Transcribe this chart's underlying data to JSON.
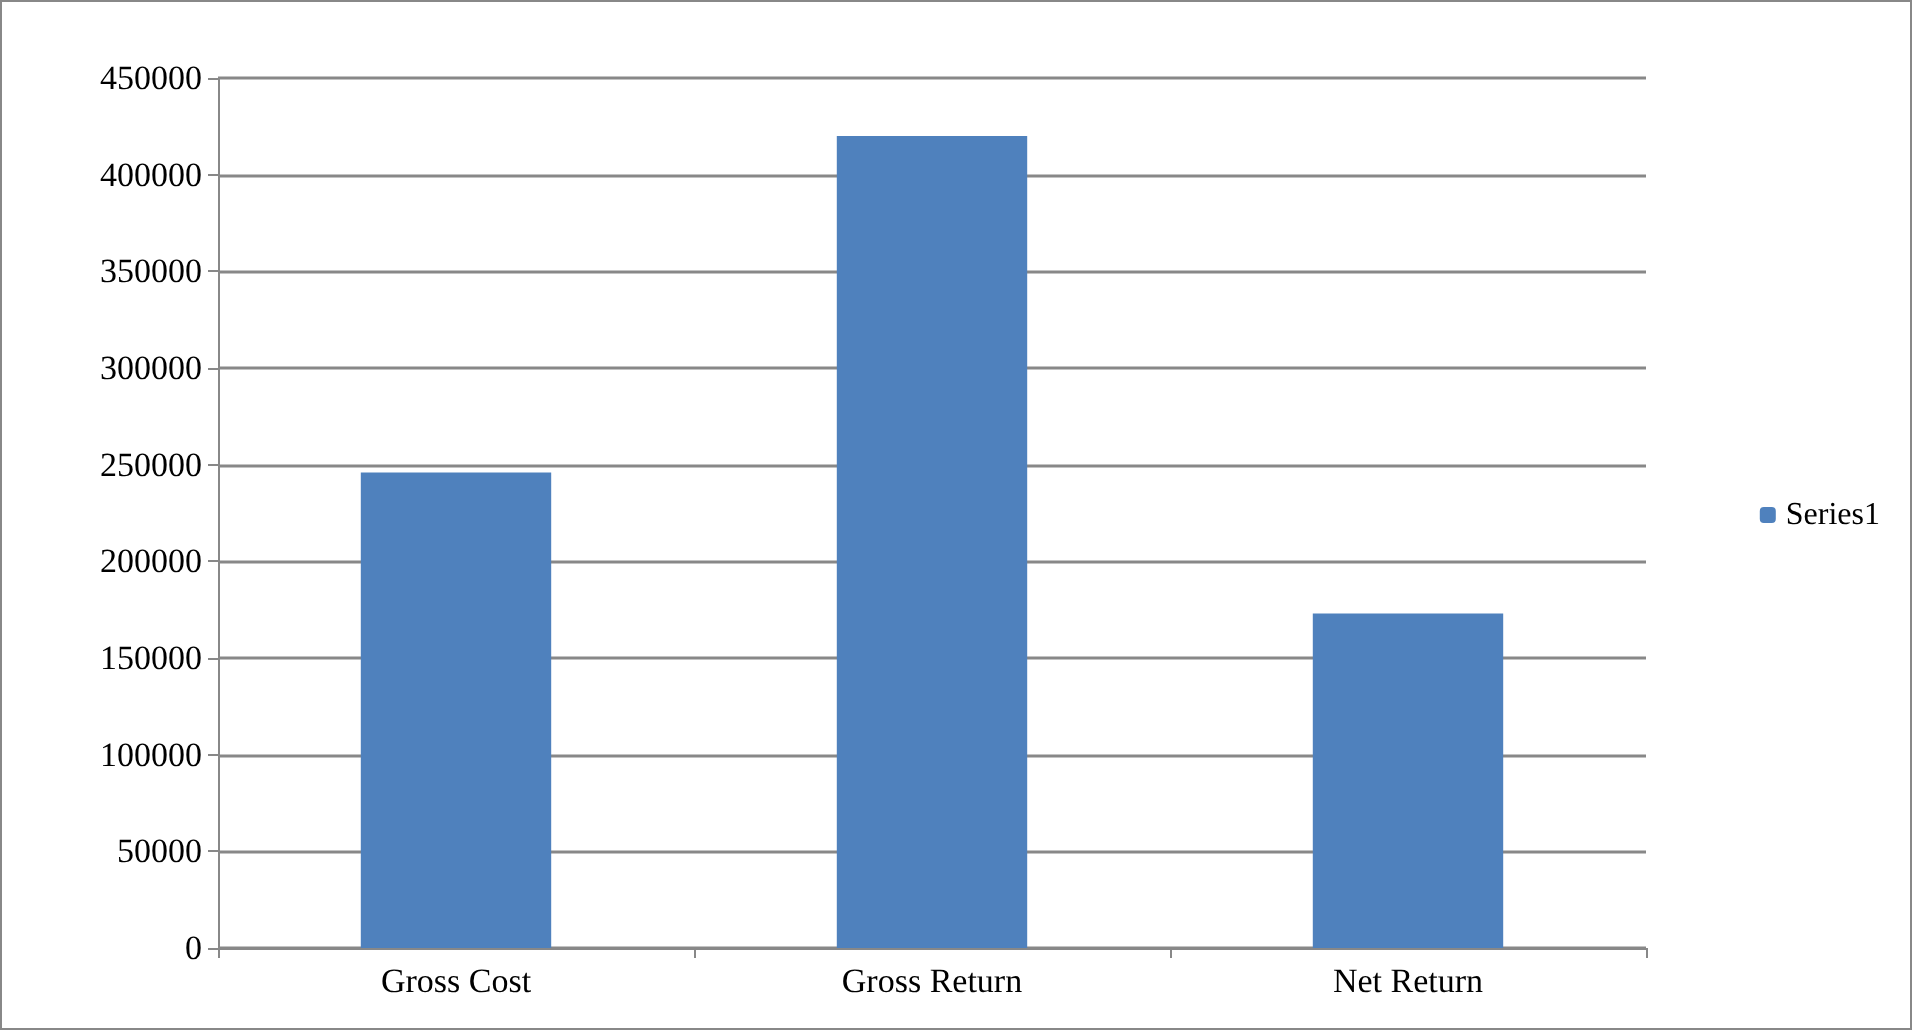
{
  "chart_data": {
    "type": "bar",
    "categories": [
      "Gross Cost",
      "Gross Return",
      "Net Return"
    ],
    "series": [
      {
        "name": "Series1",
        "color": "#4f81bd",
        "values": [
          246000,
          420000,
          173000
        ]
      }
    ],
    "ylim": [
      0,
      450000
    ],
    "yticks": [
      0,
      50000,
      100000,
      150000,
      200000,
      250000,
      300000,
      350000,
      400000,
      450000
    ],
    "grid": "y",
    "legend": "right"
  }
}
